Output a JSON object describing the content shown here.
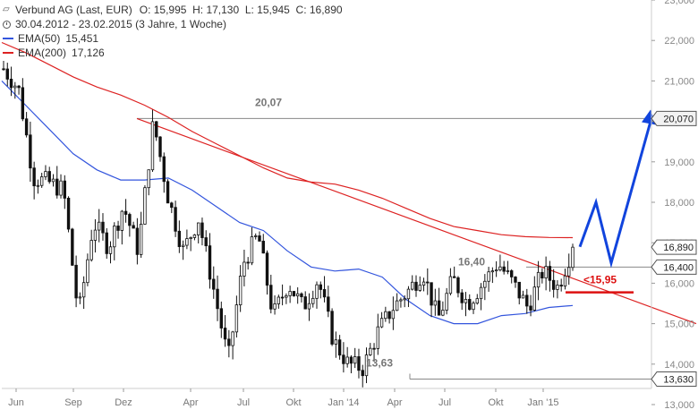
{
  "legend": {
    "title": "Verbund AG (Last, EUR)",
    "ohlc": "O: 15,995  H: 17,130  L: 15,945  C: 16,890",
    "period": "30.04.2012 - 23.02.2015 (3 Jahre, 1 Woche)",
    "ema50_label": "EMA(50)",
    "ema50_value": "15,451",
    "ema200_label": "EMA(200)",
    "ema200_value": "17,126",
    "ema50_color": "#3355dd",
    "ema200_color": "#dd2222"
  },
  "chart_data": {
    "type": "candlestick",
    "x_ticks": [
      "Jun",
      "Sep",
      "Dez",
      "Apr",
      "Jul",
      "Okt",
      "Jan '14",
      "Apr",
      "Jul",
      "Okt",
      "Jan '15"
    ],
    "y_ticks": [
      "13,000",
      "14,000",
      "15,000",
      "16,000",
      "17,000",
      "18,000",
      "19,000",
      "20,000",
      "21,000",
      "22,000",
      "23,000"
    ],
    "y_tick_values": [
      13,
      14,
      15,
      16,
      17,
      18,
      19,
      20,
      21,
      22,
      23
    ],
    "ylim": [
      13,
      23
    ],
    "price_boxes": [
      {
        "label": "20,070",
        "value": 20.07,
        "style": "highlight"
      },
      {
        "label": "16,890",
        "value": 16.89,
        "style": "plain"
      },
      {
        "label": "16,400",
        "value": 16.4,
        "style": "plain"
      },
      {
        "label": "13,630",
        "value": 13.63,
        "style": "plain"
      }
    ],
    "annotations": [
      {
        "label": "20,07",
        "value": 20.07
      },
      {
        "label": "16,40",
        "value": 16.4
      },
      {
        "label": "13,63",
        "value": 13.63
      },
      {
        "label": "<15,95",
        "value": 15.95,
        "color": "#dd1111"
      }
    ],
    "horizontal_levels": [
      {
        "value": 20.07,
        "from": "Dez",
        "to": "end"
      },
      {
        "value": 16.4,
        "from": "Okt",
        "to": "end"
      },
      {
        "value": 13.63,
        "from": "Apr",
        "to": "end"
      }
    ],
    "support_line": {
      "value": 15.95,
      "color": "#dd1111"
    },
    "downtrend_line": {
      "start": {
        "x": "Dez",
        "y": 20.07
      },
      "end": {
        "x": "end",
        "y": 15.0
      },
      "color": "#dd2222"
    },
    "projection_arrow": {
      "points": [
        16.9,
        18.0,
        16.5,
        20.0
      ],
      "color": "#1144dd"
    },
    "series": [
      {
        "name": "EMA(50)",
        "color": "#3355dd",
        "values": [
          21.0,
          20.4,
          19.8,
          19.2,
          18.8,
          18.55,
          18.55,
          18.6,
          18.3,
          17.9,
          17.5,
          17.3,
          16.8,
          16.4,
          16.3,
          16.35,
          16.15,
          15.6,
          15.2,
          15.0,
          15.0,
          15.2,
          15.25,
          15.4,
          15.45
        ]
      },
      {
        "name": "EMA(200)",
        "color": "#dd2222",
        "values": [
          21.95,
          21.7,
          21.4,
          21.1,
          20.85,
          20.65,
          20.4,
          20.1,
          19.75,
          19.45,
          19.15,
          18.85,
          18.6,
          18.5,
          18.45,
          18.3,
          18.1,
          17.85,
          17.6,
          17.4,
          17.3,
          17.2,
          17.15,
          17.13,
          17.126
        ]
      },
      {
        "name": "Verbund AG (Last, EUR)",
        "color": "#111111",
        "values": [
          21.3,
          20.8,
          18.6,
          18.5,
          18.3,
          15.2,
          17.5,
          16.9,
          17.9,
          16.8,
          20.0,
          18.1,
          16.8,
          17.6,
          15.9,
          14.1,
          16.5,
          17.2,
          15.2,
          16.0,
          15.4,
          16.1,
          14.6,
          14.0,
          13.9,
          14.8,
          15.4,
          15.8,
          16.3,
          15.1,
          16.1,
          15.5,
          16.0,
          16.5,
          16.0,
          15.4,
          16.3,
          15.9,
          16.89
        ]
      }
    ]
  }
}
